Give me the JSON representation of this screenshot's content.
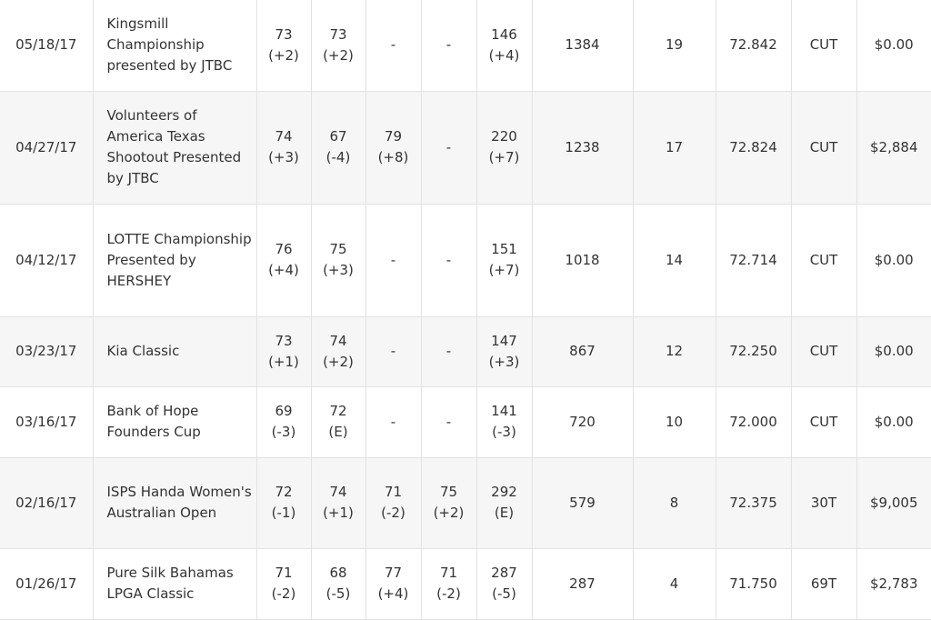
{
  "rows": [
    {
      "date": "05/18/17",
      "tournament": "Kingsmill Championship presented by JTBC",
      "r1": "73",
      "r1_par": "(+2)",
      "r2": "73",
      "r2_par": "(+2)",
      "r3": "-",
      "r3_par": "",
      "r4": "-",
      "r4_par": "",
      "total": "146",
      "total_par": "(+4)",
      "cum_strokes": "1384",
      "cum_rounds": "19",
      "avg": "72.842",
      "finish": "CUT",
      "money": "$0.00"
    },
    {
      "date": "04/27/17",
      "tournament": "Volunteers of America Texas Shootout Presented by JTBC",
      "r1": "74",
      "r1_par": "(+3)",
      "r2": "67",
      "r2_par": "(-4)",
      "r3": "79",
      "r3_par": "(+8)",
      "r4": "-",
      "r4_par": "",
      "total": "220",
      "total_par": "(+7)",
      "cum_strokes": "1238",
      "cum_rounds": "17",
      "avg": "72.824",
      "finish": "CUT",
      "money": "$2,884"
    },
    {
      "date": "04/12/17",
      "tournament": "LOTTE Championship Presented by HERSHEY",
      "r1": "76",
      "r1_par": "(+4)",
      "r2": "75",
      "r2_par": "(+3)",
      "r3": "-",
      "r3_par": "",
      "r4": "-",
      "r4_par": "",
      "total": "151",
      "total_par": "(+7)",
      "cum_strokes": "1018",
      "cum_rounds": "14",
      "avg": "72.714",
      "finish": "CUT",
      "money": "$0.00"
    },
    {
      "date": "03/23/17",
      "tournament": "Kia Classic",
      "r1": "73",
      "r1_par": "(+1)",
      "r2": "74",
      "r2_par": "(+2)",
      "r3": "-",
      "r3_par": "",
      "r4": "-",
      "r4_par": "",
      "total": "147",
      "total_par": "(+3)",
      "cum_strokes": "867",
      "cum_rounds": "12",
      "avg": "72.250",
      "finish": "CUT",
      "money": "$0.00"
    },
    {
      "date": "03/16/17",
      "tournament": "Bank of Hope Founders Cup",
      "r1": "69",
      "r1_par": "(-3)",
      "r2": "72",
      "r2_par": "(E)",
      "r3": "-",
      "r3_par": "",
      "r4": "-",
      "r4_par": "",
      "total": "141",
      "total_par": "(-3)",
      "cum_strokes": "720",
      "cum_rounds": "10",
      "avg": "72.000",
      "finish": "CUT",
      "money": "$0.00"
    },
    {
      "date": "02/16/17",
      "tournament": "ISPS Handa Women's Australian Open",
      "r1": "72",
      "r1_par": "(-1)",
      "r2": "74",
      "r2_par": "(+1)",
      "r3": "71",
      "r3_par": "(-2)",
      "r4": "75",
      "r4_par": "(+2)",
      "total": "292",
      "total_par": "(E)",
      "cum_strokes": "579",
      "cum_rounds": "8",
      "avg": "72.375",
      "finish": "30T",
      "money": "$9,005"
    },
    {
      "date": "01/26/17",
      "tournament": "Pure Silk Bahamas LPGA Classic",
      "r1": "71",
      "r1_par": "(-2)",
      "r2": "68",
      "r2_par": "(-5)",
      "r3": "77",
      "r3_par": "(+4)",
      "r4": "71",
      "r4_par": "(-2)",
      "total": "287",
      "total_par": "(-5)",
      "cum_strokes": "287",
      "cum_rounds": "4",
      "avg": "71.750",
      "finish": "69T",
      "money": "$2,783"
    }
  ]
}
